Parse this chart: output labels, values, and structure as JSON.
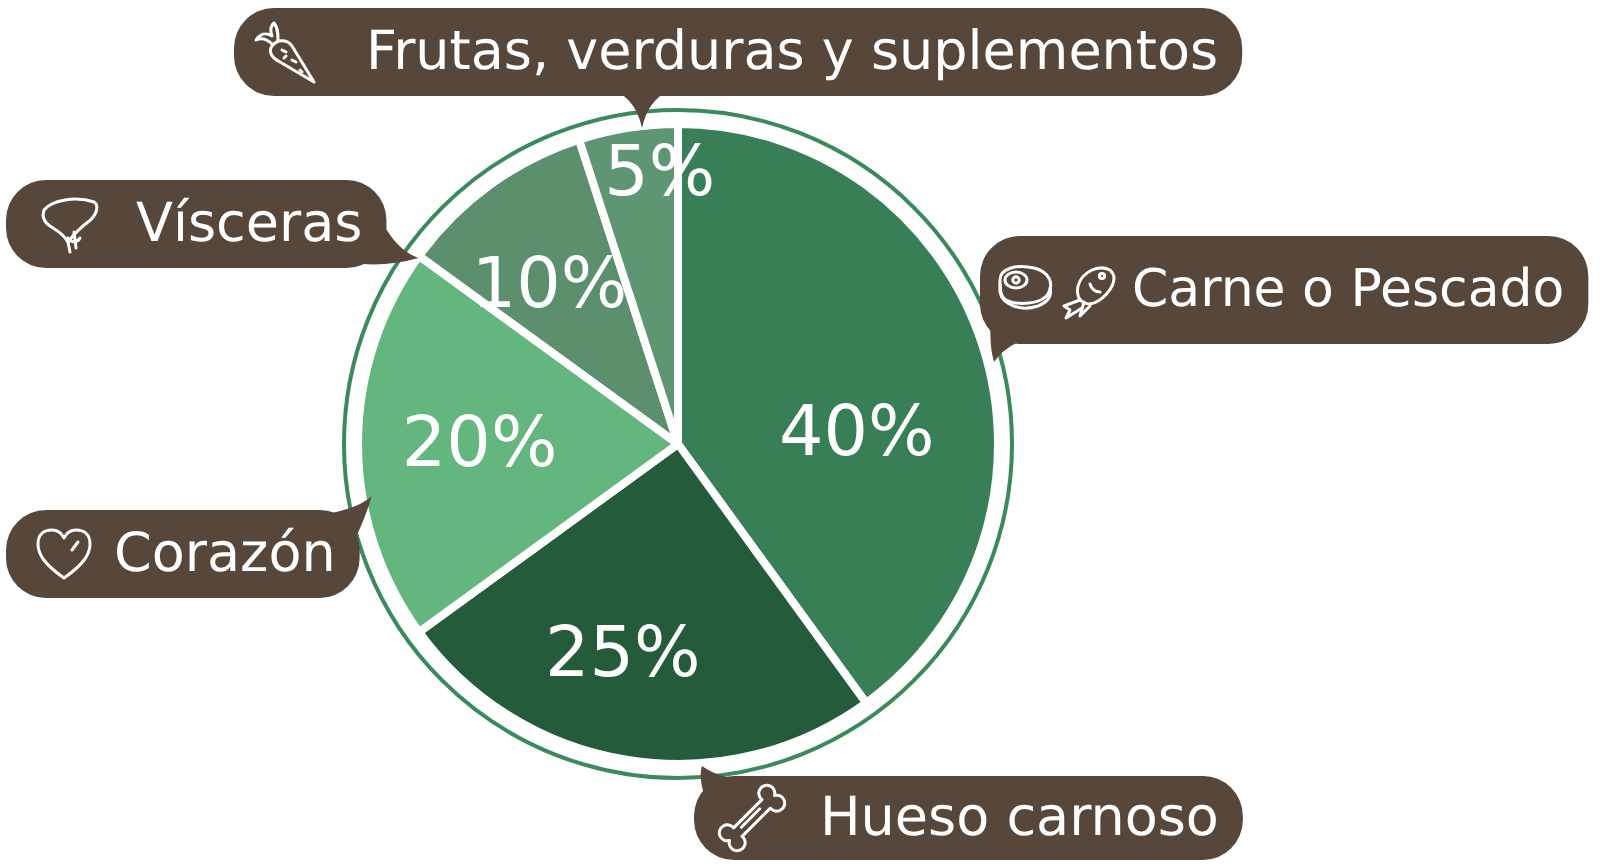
{
  "chart_data": {
    "type": "pie",
    "categories": [
      "Carne o Pescado",
      "Hueso carnoso",
      "Corazón",
      "Vísceras",
      "Frutas, verduras y suplementos"
    ],
    "values": [
      40,
      25,
      20,
      10,
      5
    ],
    "colors": [
      "#387f58",
      "#245c3b",
      "#64b67f",
      "#5b8f6e",
      "#5e9673"
    ],
    "value_labels": [
      "40%",
      "25%",
      "20%",
      "10%",
      "5%"
    ]
  }
}
